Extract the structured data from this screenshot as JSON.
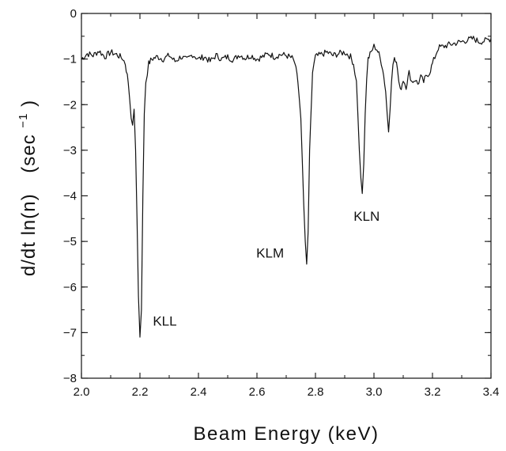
{
  "chart_data": {
    "type": "line",
    "title": "",
    "xlabel": "Beam Energy (keV)",
    "ylabel_main": "d/dt ln(n)",
    "ylabel_unit": "(sec",
    "ylabel_unit_exp": "−1",
    "ylabel_unit_close": ")",
    "xlim": [
      2.0,
      3.4
    ],
    "ylim": [
      -8,
      0
    ],
    "x_ticks": [
      2.0,
      2.2,
      2.4,
      2.6,
      2.8,
      3.0,
      3.2,
      3.4
    ],
    "x_tick_labels": [
      "2.0",
      "2.2",
      "2.4",
      "2.6",
      "2.8",
      "3.0",
      "3.2",
      "3.4"
    ],
    "y_ticks": [
      0,
      -1,
      -2,
      -3,
      -4,
      -5,
      -6,
      -7,
      -8
    ],
    "y_tick_labels": [
      "0",
      "−1",
      "−2",
      "−3",
      "−4",
      "−5",
      "−6",
      "−7",
      "−8"
    ],
    "grid": false,
    "line_color": "#111111",
    "annotations": [
      {
        "text": "KLL",
        "x": 2.285,
        "y": -6.85
      },
      {
        "text": "KLM",
        "x": 2.645,
        "y": -5.35
      },
      {
        "text": "KLN",
        "x": 2.975,
        "y": -4.55
      }
    ],
    "series": [
      {
        "x": [
          2.0,
          2.02,
          2.04,
          2.06,
          2.08,
          2.1,
          2.12,
          2.14,
          2.15,
          2.16,
          2.165,
          2.17,
          2.175,
          2.18,
          2.185,
          2.19,
          2.195,
          2.2,
          2.205,
          2.21,
          2.215,
          2.22,
          2.23,
          2.24,
          2.26,
          2.28,
          2.3,
          2.32,
          2.34,
          2.36,
          2.38,
          2.4,
          2.42,
          2.44,
          2.46,
          2.48,
          2.5,
          2.52,
          2.54,
          2.56,
          2.58,
          2.6,
          2.62,
          2.64,
          2.66,
          2.68,
          2.7,
          2.72,
          2.73,
          2.74,
          2.75,
          2.755,
          2.76,
          2.765,
          2.77,
          2.775,
          2.78,
          2.79,
          2.8,
          2.82,
          2.84,
          2.86,
          2.88,
          2.9,
          2.92,
          2.93,
          2.94,
          2.945,
          2.95,
          2.955,
          2.96,
          2.965,
          2.97,
          2.975,
          2.98,
          2.99,
          3.0,
          3.01,
          3.02,
          3.03,
          3.04,
          3.045,
          3.05,
          3.055,
          3.06,
          3.065,
          3.07,
          3.08,
          3.085,
          3.09,
          3.1,
          3.11,
          3.12,
          3.13,
          3.14,
          3.15,
          3.16,
          3.17,
          3.18,
          3.19,
          3.2,
          3.22,
          3.24,
          3.26,
          3.28,
          3.3,
          3.32,
          3.34,
          3.36,
          3.38,
          3.4
        ],
        "y": [
          -1.0,
          -0.88,
          -0.92,
          -0.82,
          -0.95,
          -0.85,
          -0.9,
          -0.98,
          -1.1,
          -1.5,
          -1.9,
          -2.3,
          -2.45,
          -2.1,
          -3.0,
          -4.5,
          -6.2,
          -7.1,
          -6.5,
          -4.0,
          -2.2,
          -1.5,
          -1.1,
          -1.0,
          -0.95,
          -1.0,
          -0.92,
          -1.05,
          -0.95,
          -1.02,
          -0.9,
          -1.0,
          -0.95,
          -1.05,
          -0.92,
          -1.0,
          -0.95,
          -1.02,
          -0.9,
          -0.98,
          -0.92,
          -1.0,
          -0.95,
          -0.88,
          -0.95,
          -0.9,
          -0.92,
          -0.98,
          -1.1,
          -1.5,
          -2.3,
          -3.2,
          -4.2,
          -5.0,
          -5.5,
          -4.8,
          -3.0,
          -1.3,
          -0.95,
          -0.9,
          -0.85,
          -0.92,
          -0.88,
          -0.85,
          -0.95,
          -1.1,
          -1.5,
          -2.2,
          -3.0,
          -3.6,
          -3.95,
          -3.3,
          -2.2,
          -1.4,
          -1.0,
          -0.85,
          -0.72,
          -0.78,
          -0.95,
          -1.2,
          -1.7,
          -2.2,
          -2.6,
          -2.1,
          -1.5,
          -1.1,
          -0.9,
          -1.2,
          -1.5,
          -1.7,
          -1.45,
          -1.6,
          -1.3,
          -1.5,
          -1.45,
          -1.55,
          -1.4,
          -1.5,
          -1.35,
          -1.3,
          -1.1,
          -0.75,
          -0.72,
          -0.68,
          -0.65,
          -0.62,
          -0.58,
          -0.55,
          -0.62,
          -0.6,
          -0.55
        ]
      }
    ]
  }
}
